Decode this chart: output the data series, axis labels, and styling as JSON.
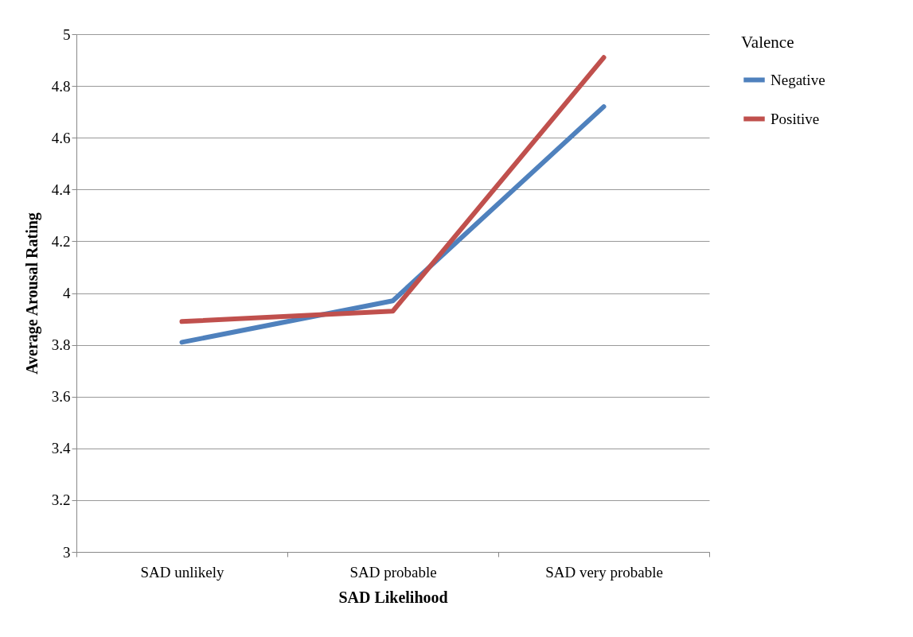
{
  "chart_data": {
    "type": "line",
    "xlabel": "SAD Likelihood",
    "ylabel": "Average Arousal Rating",
    "legend_title": "Valence",
    "categories": [
      "SAD unlikely",
      "SAD probable",
      "SAD very probable"
    ],
    "series": [
      {
        "name": "Negative",
        "color": "#4f81bd",
        "values": [
          3.81,
          3.97,
          4.72
        ]
      },
      {
        "name": "Positive",
        "color": "#c0504d",
        "values": [
          3.89,
          3.93,
          4.91
        ]
      }
    ],
    "ylim": [
      3,
      5
    ],
    "yticks": [
      3,
      3.2,
      3.4,
      3.6,
      3.8,
      4,
      4.2,
      4.4,
      4.6,
      4.8,
      5
    ],
    "grid": "y",
    "legend": "right"
  }
}
